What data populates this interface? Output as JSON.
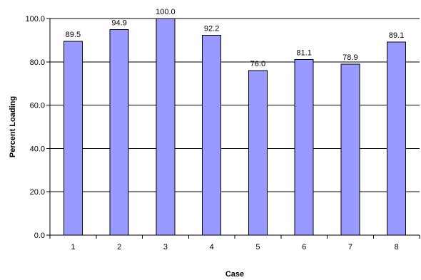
{
  "chart_data": {
    "type": "bar",
    "title": "",
    "xlabel": "Case",
    "ylabel": "Percent Loading",
    "categories": [
      "1",
      "2",
      "3",
      "4",
      "5",
      "6",
      "7",
      "8"
    ],
    "values": [
      89.5,
      94.9,
      100.0,
      92.2,
      76.0,
      81.1,
      78.9,
      89.1
    ],
    "data_labels": [
      "89.5",
      "94.9",
      "100.0",
      "92.2",
      "76.0",
      "81.1",
      "78.9",
      "89.1"
    ],
    "ylim": [
      0,
      100
    ],
    "yticks": [
      0,
      20,
      40,
      60,
      80,
      100
    ],
    "ytick_labels": [
      "0.0",
      "20.0",
      "40.0",
      "60.0",
      "80.0",
      "100.0"
    ],
    "grid": true,
    "legend": "none",
    "colors": {
      "bar_fill": "#9999ff",
      "bar_stroke": "#000000",
      "gridline": "#000000",
      "axis": "#000000"
    }
  }
}
